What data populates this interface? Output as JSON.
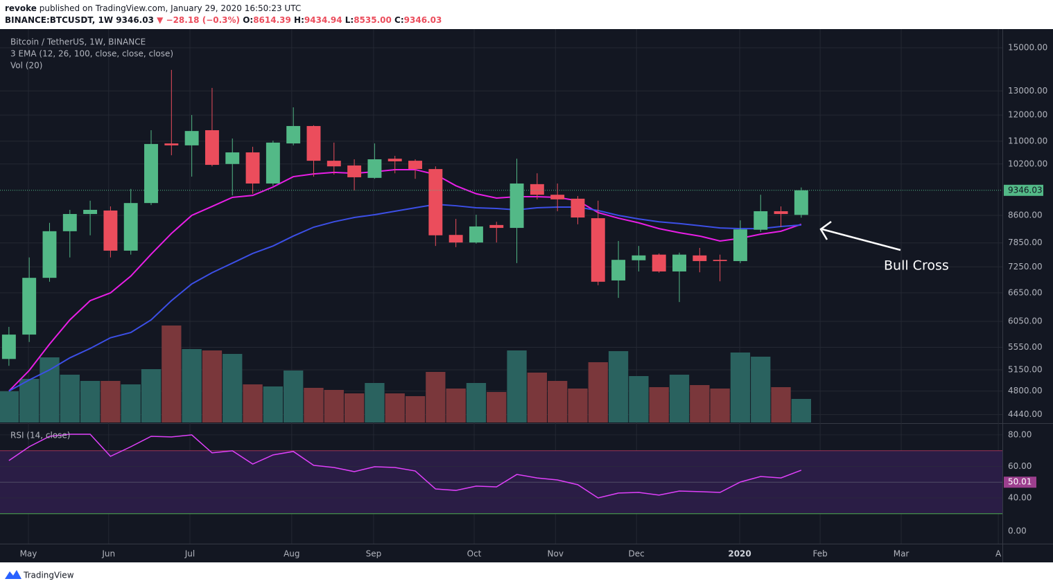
{
  "header": {
    "author": "revoke",
    "published": "published on TradingView.com, January 29, 2020 16:50:23 UTC",
    "symbol": "BINANCE:BTCUSDT, 1W",
    "last": "9346.03",
    "change": "▼ −28.18 (−0.3%)",
    "ohlc": [
      {
        "label": "O:",
        "value": "8614.39"
      },
      {
        "label": "H:",
        "value": "9434.94"
      },
      {
        "label": "L:",
        "value": "8535.00"
      },
      {
        "label": "C:",
        "value": "9346.03"
      }
    ]
  },
  "footer": {
    "brand": "TradingView"
  },
  "chart_data": {
    "type": "candlestick",
    "title": "Bitcoin / TetherUS, 1W, BINANCE",
    "indicator_label": "3 EMA (12, 26, 100, close, close, close)",
    "volume_label": "Vol (20)",
    "annotation": "Bull Cross",
    "categories": [
      null,
      null,
      null,
      null,
      null,
      null,
      null,
      null,
      null,
      null,
      null,
      null,
      null,
      null,
      null,
      null,
      null,
      null,
      null,
      null,
      null,
      null,
      null,
      null,
      null,
      null,
      null,
      null,
      null,
      null,
      null,
      null,
      null,
      null,
      null,
      null,
      null,
      null,
      null,
      null
    ],
    "xlim": [
      -0.2,
      48.9
    ],
    "xticks": [
      {
        "value": 0.96,
        "label": "May"
      },
      {
        "value": 4.91,
        "label": "Jun"
      },
      {
        "value": 8.91,
        "label": "Jul"
      },
      {
        "value": 13.92,
        "label": "Aug"
      },
      {
        "value": 17.95,
        "label": "Sep"
      },
      {
        "value": 22.9,
        "label": "Oct"
      },
      {
        "value": 26.9,
        "label": "Nov"
      },
      {
        "value": 30.89,
        "label": "Dec"
      },
      {
        "value": 35.97,
        "label": "2020"
      },
      {
        "value": 39.93,
        "label": "Feb"
      },
      {
        "value": 43.92,
        "label": "Mar"
      },
      {
        "value": 48.7,
        "label": "A"
      }
    ],
    "log_scale": true,
    "ylim": [
      4325,
      15670
    ],
    "yticks": [
      {
        "value": 15000,
        "label": "15000.00"
      },
      {
        "value": 13000,
        "label": "13000.00"
      },
      {
        "value": 12000,
        "label": "12000.00"
      },
      {
        "value": 11000,
        "label": "11000.00"
      },
      {
        "value": 10200,
        "label": "10200.00"
      },
      {
        "value": 8600,
        "label": "8600.00"
      },
      {
        "value": 7850,
        "label": "7850.00"
      },
      {
        "value": 7250,
        "label": "7250.00"
      },
      {
        "value": 6650,
        "label": "6650.00"
      },
      {
        "value": 6050,
        "label": "6050.00"
      },
      {
        "value": 5550,
        "label": "5550.00"
      },
      {
        "value": 5150,
        "label": "5150.00"
      },
      {
        "value": 4800,
        "label": "4800.00"
      },
      {
        "value": 4440,
        "label": "4440.00"
      }
    ],
    "grid": true,
    "up_color": "#53b987",
    "down_color": "#eb4d5c",
    "open": [
      5340,
      5790,
      6990,
      8160,
      8640,
      8740,
      7650,
      8960,
      10920,
      10850,
      11410,
      10200,
      10600,
      9560,
      10920,
      11570,
      10310,
      10150,
      9740,
      10380,
      10310,
      10030,
      8060,
      7860,
      8330,
      8250,
      9540,
      9210,
      9090,
      8520,
      6930,
      7410,
      7550,
      7140,
      7530,
      7420,
      7390,
      8200,
      8720,
      8614.39
    ],
    "high": [
      5940,
      7480,
      8390,
      8760,
      9030,
      8860,
      9390,
      11410,
      13940,
      12000,
      13130,
      11100,
      10800,
      11020,
      12310,
      11600,
      10950,
      10360,
      10920,
      10480,
      10360,
      10120,
      8500,
      8620,
      8420,
      10380,
      9890,
      9560,
      9170,
      9030,
      7900,
      7770,
      7580,
      7600,
      7720,
      7550,
      8460,
      9210,
      8860,
      9434.94
    ],
    "low": [
      5220,
      5650,
      6900,
      7480,
      8050,
      7480,
      7550,
      8900,
      10500,
      9780,
      10120,
      9190,
      9240,
      9490,
      10850,
      9780,
      9850,
      9340,
      9710,
      9890,
      9710,
      7770,
      7740,
      7830,
      7860,
      7340,
      9070,
      8720,
      8350,
      6820,
      6540,
      7140,
      7110,
      6450,
      7120,
      6910,
      7340,
      8140,
      8270,
      8535
    ],
    "close": [
      5790,
      6990,
      8160,
      8640,
      8760,
      7650,
      8960,
      10900,
      10850,
      11380,
      10170,
      10600,
      9560,
      10950,
      11570,
      10310,
      10120,
      9760,
      10360,
      10290,
      10030,
      8050,
      7860,
      8290,
      8250,
      9560,
      9210,
      9070,
      8540,
      6900,
      7420,
      7530,
      7140,
      7550,
      7390,
      7390,
      8210,
      8720,
      8640,
      9346.03
    ],
    "ema": [
      {
        "color": "#e91ee6",
        "values": [
          4800,
          5140,
          5610,
          6080,
          6480,
          6650,
          7030,
          7560,
          8100,
          8600,
          8860,
          9130,
          9190,
          9450,
          9780,
          9870,
          9920,
          9890,
          9940,
          10010,
          10010,
          9850,
          9490,
          9240,
          9110,
          9150,
          9150,
          9130,
          9030,
          8680,
          8520,
          8390,
          8230,
          8120,
          8030,
          7900,
          7970,
          8080,
          8160,
          8350
        ]
      },
      {
        "color": "#3c4fe6",
        "values": [
          4800,
          4980,
          5150,
          5360,
          5530,
          5730,
          5830,
          6080,
          6480,
          6850,
          7110,
          7340,
          7580,
          7770,
          8030,
          8270,
          8420,
          8540,
          8620,
          8720,
          8820,
          8920,
          8880,
          8820,
          8800,
          8760,
          8820,
          8840,
          8840,
          8740,
          8600,
          8500,
          8420,
          8370,
          8310,
          8250,
          8230,
          8230,
          8290,
          8330
        ]
      }
    ],
    "volume": [
      45,
      63,
      94,
      69,
      60,
      60,
      55,
      77,
      140,
      106,
      104,
      99,
      55,
      52,
      75,
      50,
      47,
      42,
      57,
      42,
      38,
      73,
      49,
      57,
      44,
      104,
      72,
      60,
      49,
      87,
      103,
      67,
      51,
      69,
      54,
      49,
      101,
      95,
      51,
      34
    ],
    "vlim": [
      0,
      160
    ],
    "volume_up_color": "#2a625f",
    "volume_down_color": "#7a373b",
    "rsi": {
      "label": "RSI (14, close)",
      "color": "#e040fb",
      "values": [
        63.7,
        72.5,
        79.1,
        80.4,
        80.4,
        66.4,
        72.5,
        79.1,
        78.7,
        80.0,
        68.6,
        69.9,
        61.5,
        67.3,
        69.5,
        60.7,
        59.3,
        56.7,
        59.8,
        59.3,
        57.1,
        45.7,
        44.8,
        47.5,
        47.0,
        54.9,
        52.7,
        51.4,
        48.4,
        40.0,
        43.1,
        43.5,
        41.8,
        44.4,
        44.0,
        43.5,
        50.1,
        53.6,
        52.7,
        57.6
      ],
      "ylim": [
        11,
        87
      ],
      "yticks": [
        {
          "value": 80,
          "label": "80.00"
        },
        {
          "value": 60,
          "label": "60.00"
        },
        {
          "value": 40,
          "label": "40.00"
        }
      ],
      "bands": [
        {
          "value": 70,
          "color": "#9c3457"
        },
        {
          "value": 30,
          "color": "#4caf50"
        }
      ],
      "band_fill": "#2a1d45",
      "marker": {
        "value": 50.01,
        "label": "50.01",
        "color": "#9c3f8e"
      },
      "extra_label": "0.00"
    }
  }
}
